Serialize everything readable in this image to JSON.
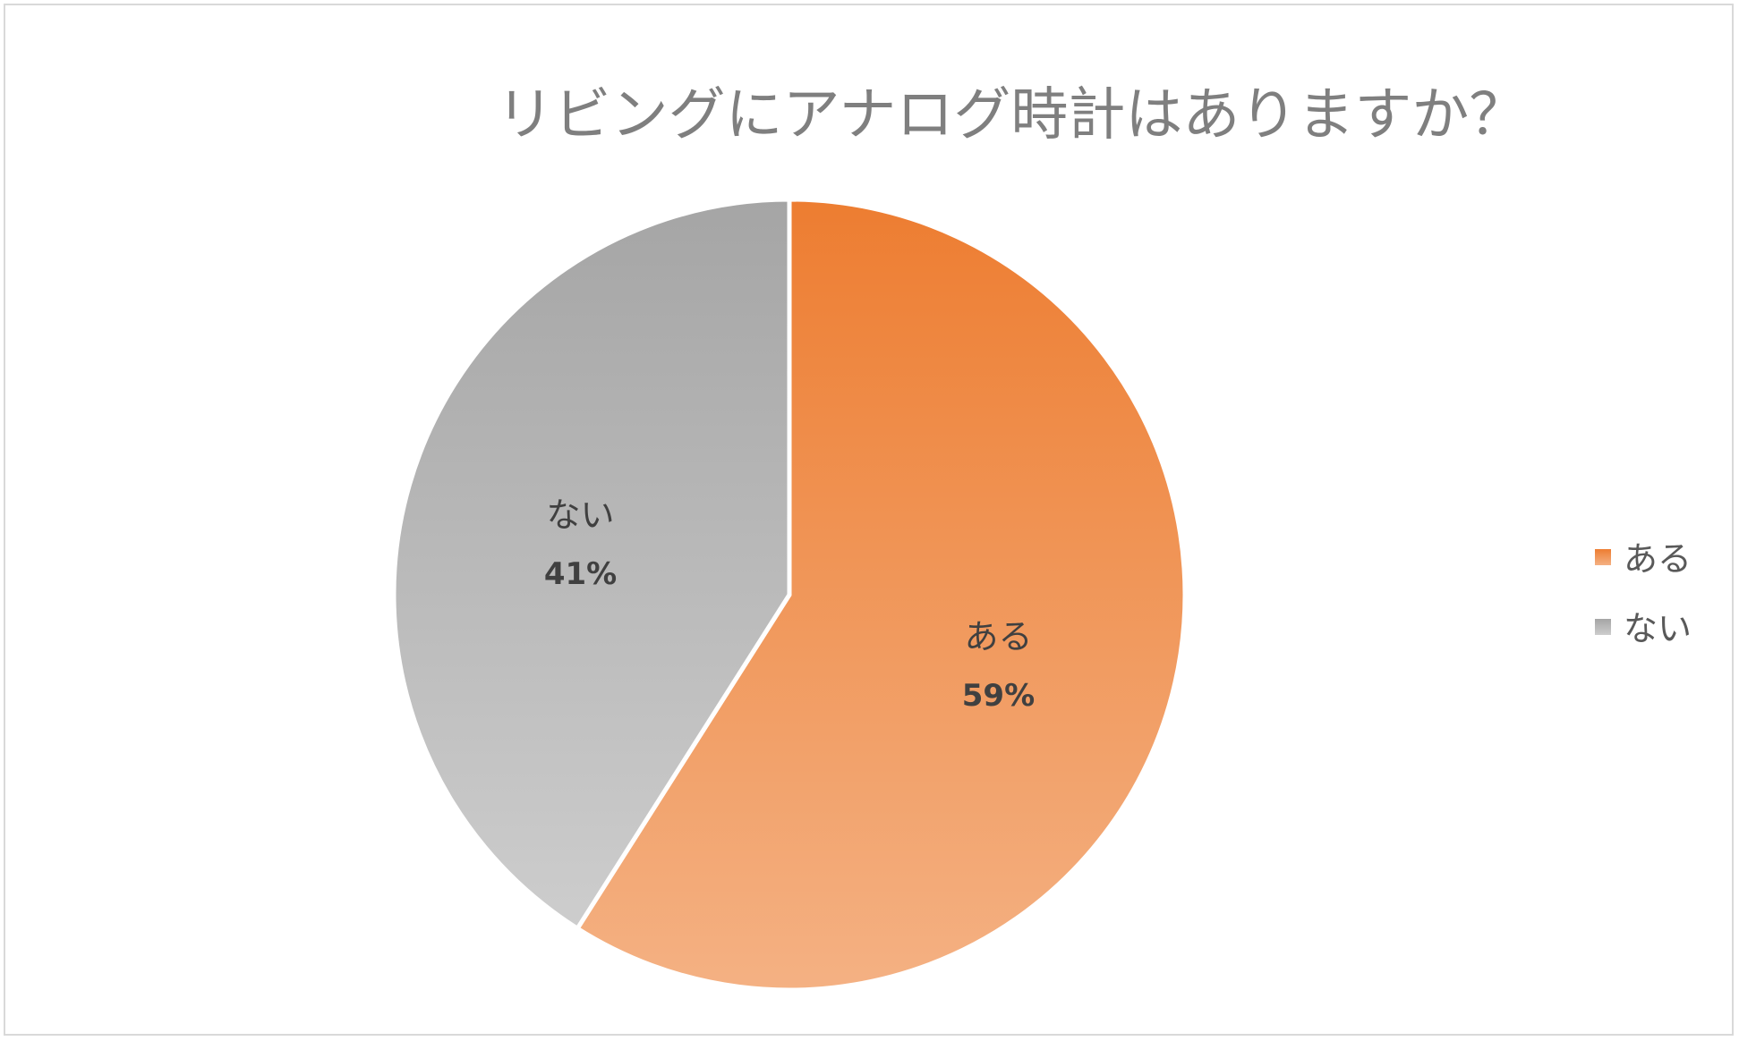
{
  "chart_data": {
    "type": "pie",
    "title": "リビングにアナログ時計はありますか？",
    "categories": [
      "ある",
      "ない"
    ],
    "values": [
      59,
      41
    ],
    "data_labels": [
      "59%",
      "41%"
    ],
    "legend": {
      "placement": "right",
      "entries": [
        "ある",
        "ない"
      ]
    },
    "colors": {
      "ある": {
        "top": "#ed7d31",
        "bottom": "#f4b183"
      },
      "ない": {
        "top": "#a5a5a5",
        "bottom": "#cdcdcd"
      }
    }
  }
}
